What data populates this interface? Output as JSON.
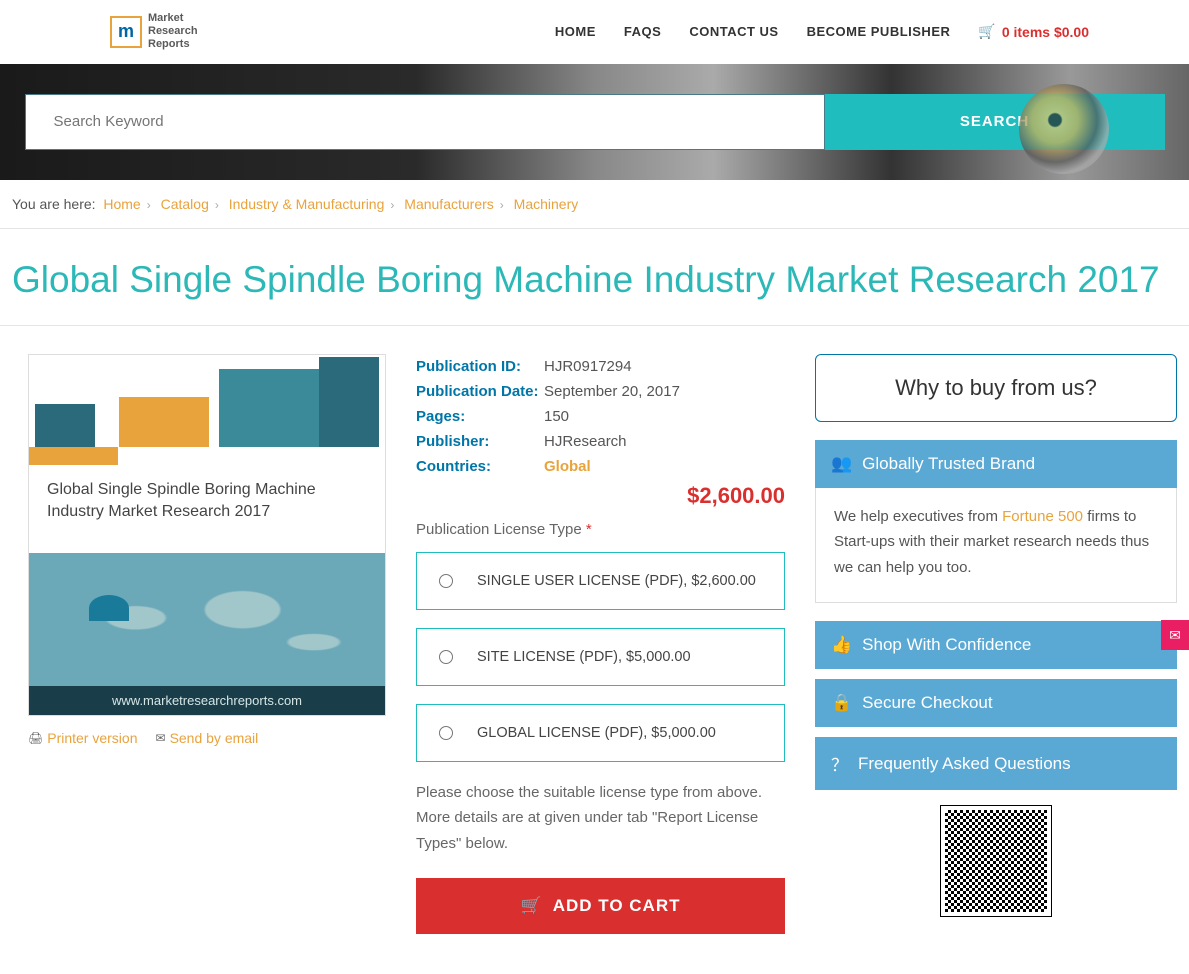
{
  "logo": {
    "letter": "m",
    "line1": "Market",
    "line2": "Research",
    "line3": "Reports"
  },
  "nav": {
    "home": "HOME",
    "faqs": "FAQS",
    "contact": "CONTACT US",
    "publisher": "BECOME PUBLISHER"
  },
  "cart": {
    "text": "0 items $0.00"
  },
  "search": {
    "placeholder": "Search Keyword",
    "button": "SEARCH"
  },
  "breadcrumb": {
    "label": "You are here:",
    "items": [
      "Home",
      "Catalog",
      "Industry & Manufacturing",
      "Manufacturers",
      "Machinery"
    ]
  },
  "page_title": "Global Single Spindle Boring Machine Industry Market Research 2017",
  "product": {
    "image_title": "Global Single Spindle Boring Machine Industry Market Research 2017",
    "map_url": "www.marketresearchreports.com"
  },
  "actions": {
    "printer": "Printer version",
    "email": "Send by email"
  },
  "meta": {
    "pub_id_label": "Publication ID:",
    "pub_id": "HJR0917294",
    "pub_date_label": "Publication Date:",
    "pub_date": "September 20, 2017",
    "pages_label": "Pages:",
    "pages": "150",
    "publisher_label": "Publisher:",
    "publisher": "HJResearch",
    "countries_label": "Countries:",
    "countries": "Global"
  },
  "price": "$2,600.00",
  "license": {
    "label": "Publication License Type",
    "opt1": "SINGLE USER LICENSE (PDF), $2,600.00",
    "opt2": "SITE LICENSE (PDF), $5,000.00",
    "opt3": "GLOBAL LICENSE (PDF), $5,000.00",
    "help": "Please choose the suitable license type from above. More details are at given under tab \"Report License Types\" below."
  },
  "add_to_cart": "ADD TO CART",
  "sidebar": {
    "why_title": "Why to buy from us?",
    "trusted_title": "Globally Trusted Brand",
    "trusted_text_pre": "We help executives from ",
    "trusted_text_highlight": "Fortune 500",
    "trusted_text_post": " firms to Start-ups with their market research needs thus we can help you too.",
    "shop": "Shop With Confidence",
    "secure": "Secure Checkout",
    "faq": "Frequently Asked Questions"
  }
}
